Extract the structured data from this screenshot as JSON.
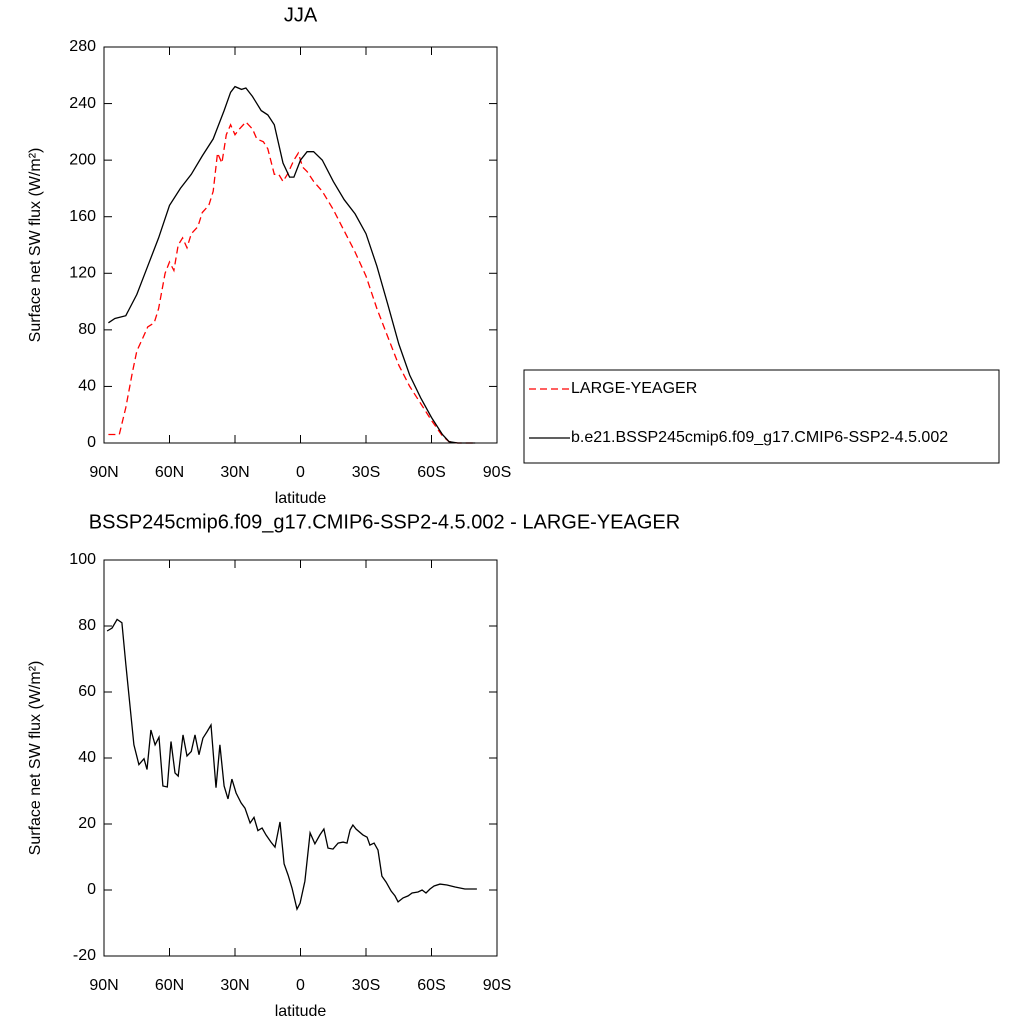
{
  "chart_data": [
    {
      "type": "line",
      "title": "JJA",
      "xlabel": "latitude",
      "ylabel": "Surface net SW flux (W/m²)",
      "xlim": [
        90,
        -90
      ],
      "ylim": [
        0,
        280
      ],
      "xticks": [
        {
          "value": 90,
          "label": "90N"
        },
        {
          "value": 60,
          "label": "60N"
        },
        {
          "value": 30,
          "label": "30N"
        },
        0,
        {
          "value": -30,
          "label": "30S"
        },
        {
          "value": -60,
          "label": "60S"
        },
        {
          "value": -90,
          "label": "90S"
        }
      ],
      "yticks": [
        0,
        40,
        80,
        120,
        160,
        200,
        240,
        280
      ],
      "legend": "right",
      "series": [
        {
          "name": "LARGE-YEAGER",
          "color": "#ff0000",
          "dashed": true,
          "x": [
            88,
            83,
            80,
            77,
            75,
            72,
            70,
            67,
            65,
            62,
            60,
            58,
            56,
            54,
            52,
            50,
            47,
            45,
            42,
            40,
            38,
            36,
            34,
            32,
            30,
            28,
            25,
            22,
            20,
            17,
            15,
            12,
            10,
            8,
            6,
            3,
            1,
            -1,
            -3,
            -6,
            -10,
            -15,
            -20,
            -25,
            -30,
            -35,
            -40,
            -45,
            -50,
            -55,
            -60,
            -65,
            -68,
            -72,
            -80
          ],
          "values": [
            6,
            6,
            25,
            50,
            65,
            75,
            82,
            85,
            95,
            120,
            128,
            122,
            140,
            145,
            138,
            148,
            153,
            163,
            168,
            178,
            205,
            198,
            218,
            225,
            218,
            222,
            227,
            222,
            215,
            213,
            208,
            190,
            190,
            185,
            190,
            200,
            205,
            195,
            192,
            185,
            178,
            165,
            150,
            135,
            118,
            95,
            75,
            55,
            40,
            28,
            16,
            5,
            1,
            0,
            0
          ]
        },
        {
          "name": "b.e21.BSSP245cmip6.f09_g17.CMIP6-SSP2-4.5.002",
          "color": "#000000",
          "dashed": false,
          "x": [
            88,
            85,
            80,
            75,
            70,
            65,
            60,
            55,
            50,
            45,
            40,
            35,
            32,
            30,
            27,
            25,
            22,
            18,
            15,
            12,
            8,
            5,
            3,
            0,
            -3,
            -6,
            -10,
            -15,
            -20,
            -25,
            -30,
            -35,
            -40,
            -45,
            -50,
            -55,
            -60,
            -65,
            -68,
            -72,
            -80
          ],
          "values": [
            85,
            88,
            90,
            105,
            125,
            145,
            168,
            180,
            190,
            203,
            215,
            235,
            248,
            252,
            250,
            251,
            245,
            235,
            232,
            225,
            198,
            188,
            188,
            200,
            206,
            206,
            200,
            185,
            172,
            162,
            148,
            125,
            98,
            70,
            48,
            32,
            18,
            6,
            1,
            0,
            0
          ]
        }
      ]
    },
    {
      "type": "line",
      "title": "BSSP245cmip6.f09_g17.CMIP6-SSP2-4.5.002 - LARGE-YEAGER",
      "xlabel": "latitude",
      "ylabel": "Surface net SW flux (W/m²)",
      "xlim": [
        90,
        -90
      ],
      "ylim": [
        -20,
        100
      ],
      "xticks": [
        {
          "value": 90,
          "label": "90N"
        },
        {
          "value": 60,
          "label": "60N"
        },
        {
          "value": 30,
          "label": "30N"
        },
        0,
        {
          "value": -30,
          "label": "30S"
        },
        {
          "value": -60,
          "label": "60S"
        },
        {
          "value": -90,
          "label": "90S"
        }
      ],
      "yticks": [
        -20,
        0,
        20,
        40,
        60,
        80,
        100
      ],
      "series": [
        {
          "color": "#000000",
          "dashed": false,
          "x": [
            88.6,
            86.3,
            84,
            81.8,
            80,
            76.3,
            74,
            71.7,
            70.3,
            68.5,
            66.6,
            64.8,
            63,
            61,
            59.3,
            57.5,
            56,
            53.8,
            52,
            50,
            48.3,
            46.5,
            44.7,
            42.8,
            41,
            38.7,
            36.9,
            35,
            33.2,
            31.4,
            29.5,
            27.2,
            25.4,
            23.1,
            21.3,
            19.5,
            17.6,
            15.8,
            13.5,
            11.7,
            9.4,
            7.5,
            5.7,
            3.9,
            1.6,
            0.2,
            -2,
            -4.4,
            -6.6,
            -8.9,
            -10.7,
            -12.6,
            -14.9,
            -17.2,
            -19.5,
            -21.3,
            -22.7,
            -24,
            -25.4,
            -28.6,
            -30.5,
            -31.8,
            -33.7,
            -35.5,
            -37.3,
            -39.2,
            -41.5,
            -43.3,
            -44.7,
            -47,
            -49.3,
            -51.1,
            -53.8,
            -55.7,
            -57.5,
            -59.3,
            -61.2,
            -63.9,
            -67.1,
            -70.8,
            -75.3,
            -80.8
          ],
          "values": [
            78.5,
            79.4,
            82,
            81,
            68.5,
            44,
            38,
            39.8,
            36.5,
            48.5,
            44,
            46.3,
            31.5,
            31.2,
            45,
            35.5,
            34.5,
            47,
            40.6,
            42,
            47,
            41,
            46,
            48,
            50,
            31,
            44,
            31.5,
            27.6,
            33.6,
            29.4,
            26.4,
            24.8,
            20.3,
            22,
            18,
            18.8,
            16.7,
            14.5,
            13,
            20.6,
            7.9,
            4.5,
            0.6,
            -5.8,
            -4,
            2.7,
            17.3,
            14,
            16.7,
            18.5,
            12.7,
            12.4,
            14.2,
            14.5,
            14.2,
            18.2,
            19.7,
            18.5,
            16.7,
            16,
            13.6,
            14.2,
            12.1,
            4.2,
            2.4,
            -0.3,
            -1.8,
            -3.6,
            -2.4,
            -1.8,
            -0.9,
            -0.6,
            0,
            -0.9,
            0.3,
            1.2,
            1.8,
            1.5,
            0.9,
            0.3,
            0.3
          ]
        }
      ]
    }
  ]
}
